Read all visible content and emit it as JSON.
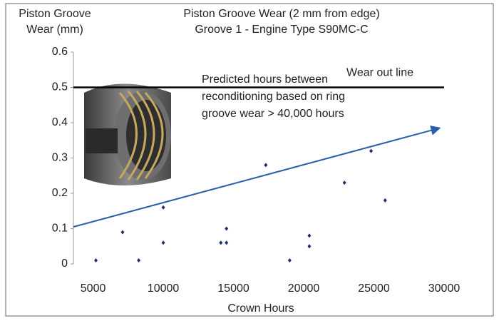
{
  "chart_data": {
    "type": "scatter",
    "title": [
      "Piston Groove Wear (2 mm from edge)",
      "Groove 1 -  Engine Type S90MC-C"
    ],
    "y_label": [
      "Piston Groove",
      "Wear (mm)"
    ],
    "x_label": "Crown Hours",
    "xlim": [
      3600,
      30000
    ],
    "ylim": [
      0,
      0.6
    ],
    "xticks": [
      5000,
      10000,
      15000,
      20000,
      25000,
      30000
    ],
    "yticks": [
      0,
      0.1,
      0.2,
      0.3,
      0.4,
      0.5,
      0.6
    ],
    "series": [
      {
        "color": "#1f2d6b",
        "x": [
          5200,
          7100,
          8250,
          10000,
          10000,
          14100,
          14500,
          14500,
          17300,
          19000,
          20400,
          20400,
          22900,
          24800,
          25800
        ],
        "values": [
          0.01,
          0.09,
          0.01,
          0.06,
          0.16,
          0.06,
          0.06,
          0.1,
          0.28,
          0.01,
          0.08,
          0.05,
          0.23,
          0.32,
          0.18
        ]
      }
    ],
    "trend": {
      "color": "#2a5fa8",
      "x": [
        3600,
        29700
      ],
      "values": [
        0.105,
        0.385
      ]
    },
    "wear_out_line": {
      "value": 0.5,
      "label": "Wear out line",
      "color": "#000000"
    },
    "annotation": [
      "Predicted hours between",
      "reconditioning based on ring",
      "groove wear > 40,000 hours"
    ]
  }
}
